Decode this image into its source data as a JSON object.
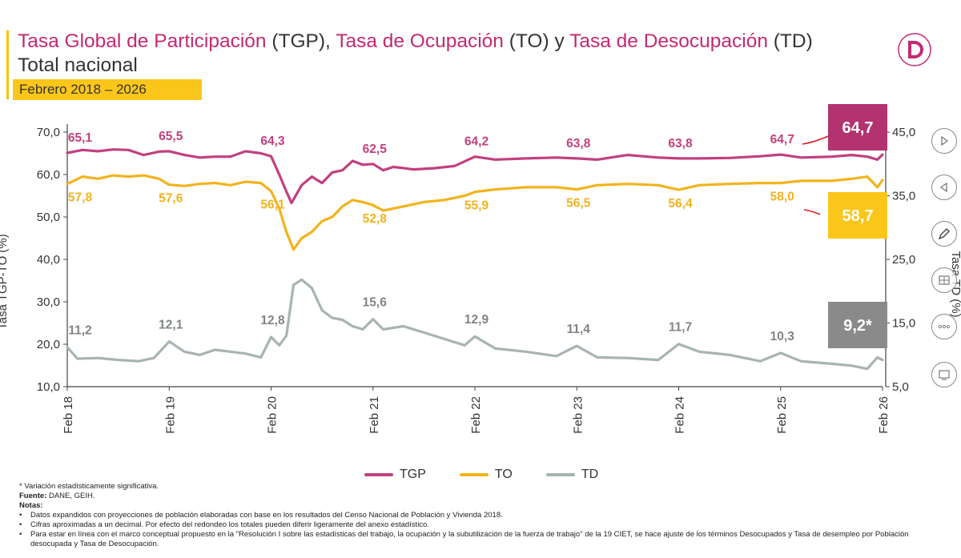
{
  "header": {
    "title_parts": [
      {
        "text": "Tasa Global de Participación",
        "color": "#c22a72"
      },
      {
        "text": " (TGP), ",
        "color": "#333333"
      },
      {
        "text": "Tasa de Ocupación",
        "color": "#c22a72"
      },
      {
        "text": " (TO) y ",
        "color": "#333333"
      },
      {
        "text": "Tasa de Desocupación",
        "color": "#c22a72"
      },
      {
        "text": " (TD)",
        "color": "#333333"
      }
    ],
    "subtitle": "Total nacional",
    "date_range": "Febrero 2018 – 2026"
  },
  "colors": {
    "tgp": "#c2407e",
    "to": "#f2b31c",
    "td": "#a7b4b0",
    "accent": "#c22a72",
    "badge_yellow": "#fbc61a"
  },
  "chart_data": {
    "type": "line",
    "x_labels": [
      "Feb 18",
      "Feb 19",
      "Feb 20",
      "Feb 21",
      "Feb 22",
      "Feb 23",
      "Feb 24",
      "Feb 25",
      "Feb 26"
    ],
    "ylabel_left": "Tasa TGP-TO (%)",
    "ylabel_right": "Tasa TD (%)",
    "yleft_ticks": [
      "10,0",
      "20,0",
      "30,0",
      "40,0",
      "50,0",
      "60,0",
      "70,0"
    ],
    "yright_ticks": [
      "5,0",
      "15,0",
      "25,0",
      "35,0",
      "45,0"
    ],
    "ylim_left": [
      10,
      70
    ],
    "ylim_right": [
      5,
      45
    ],
    "series": [
      {
        "name": "TGP",
        "axis": "left",
        "points": [
          [
            0,
            65.1
          ],
          [
            0.15,
            65.8
          ],
          [
            0.3,
            65.5
          ],
          [
            0.45,
            65.9
          ],
          [
            0.6,
            65.8
          ],
          [
            0.75,
            64.6
          ],
          [
            0.9,
            65.4
          ],
          [
            1.0,
            65.5
          ],
          [
            1.15,
            64.6
          ],
          [
            1.3,
            64.0
          ],
          [
            1.45,
            64.2
          ],
          [
            1.6,
            64.2
          ],
          [
            1.75,
            65.5
          ],
          [
            1.9,
            65.0
          ],
          [
            2.0,
            64.3
          ],
          [
            2.08,
            60.0
          ],
          [
            2.15,
            56.0
          ],
          [
            2.2,
            53.3
          ],
          [
            2.3,
            57.5
          ],
          [
            2.4,
            59.5
          ],
          [
            2.5,
            58.0
          ],
          [
            2.6,
            60.5
          ],
          [
            2.7,
            61.0
          ],
          [
            2.8,
            63.2
          ],
          [
            2.9,
            62.3
          ],
          [
            3.0,
            62.5
          ],
          [
            3.1,
            61.0
          ],
          [
            3.2,
            61.8
          ],
          [
            3.4,
            61.2
          ],
          [
            3.6,
            61.5
          ],
          [
            3.8,
            62.0
          ],
          [
            4.0,
            64.2
          ],
          [
            4.2,
            63.5
          ],
          [
            4.5,
            63.8
          ],
          [
            4.8,
            64.0
          ],
          [
            5.0,
            63.8
          ],
          [
            5.2,
            63.5
          ],
          [
            5.5,
            64.6
          ],
          [
            5.8,
            64.0
          ],
          [
            6.0,
            63.8
          ],
          [
            6.2,
            63.8
          ],
          [
            6.5,
            63.9
          ],
          [
            6.8,
            64.3
          ],
          [
            7.0,
            64.7
          ],
          [
            7.2,
            64.0
          ],
          [
            7.5,
            64.2
          ],
          [
            7.7,
            64.6
          ],
          [
            7.85,
            64.2
          ],
          [
            7.95,
            63.5
          ],
          [
            8.0,
            64.7
          ]
        ],
        "labels": [
          [
            0,
            "65,1"
          ],
          [
            1,
            "65,5"
          ],
          [
            2,
            "64,3"
          ],
          [
            3,
            "62,5"
          ],
          [
            4,
            "64,2"
          ],
          [
            5,
            "63,8"
          ],
          [
            6,
            "63,8"
          ],
          [
            7,
            "64,7"
          ]
        ],
        "last_label": "64,7"
      },
      {
        "name": "TO",
        "axis": "left",
        "points": [
          [
            0,
            57.8
          ],
          [
            0.15,
            59.5
          ],
          [
            0.3,
            59.0
          ],
          [
            0.45,
            59.8
          ],
          [
            0.6,
            59.5
          ],
          [
            0.75,
            59.8
          ],
          [
            0.9,
            59.0
          ],
          [
            1.0,
            57.6
          ],
          [
            1.15,
            57.3
          ],
          [
            1.3,
            57.8
          ],
          [
            1.45,
            58.0
          ],
          [
            1.6,
            57.5
          ],
          [
            1.75,
            58.3
          ],
          [
            1.9,
            58.0
          ],
          [
            2.0,
            56.1
          ],
          [
            2.08,
            52.0
          ],
          [
            2.15,
            46.5
          ],
          [
            2.22,
            42.3
          ],
          [
            2.3,
            45.0
          ],
          [
            2.4,
            46.5
          ],
          [
            2.5,
            49.0
          ],
          [
            2.6,
            50.0
          ],
          [
            2.7,
            52.5
          ],
          [
            2.8,
            54.0
          ],
          [
            2.9,
            53.5
          ],
          [
            3.0,
            52.8
          ],
          [
            3.1,
            51.5
          ],
          [
            3.3,
            52.5
          ],
          [
            3.5,
            53.5
          ],
          [
            3.7,
            54.0
          ],
          [
            3.9,
            55.0
          ],
          [
            4.0,
            55.9
          ],
          [
            4.2,
            56.5
          ],
          [
            4.5,
            57.0
          ],
          [
            4.8,
            57.0
          ],
          [
            5.0,
            56.5
          ],
          [
            5.2,
            57.5
          ],
          [
            5.5,
            57.8
          ],
          [
            5.8,
            57.5
          ],
          [
            6.0,
            56.4
          ],
          [
            6.2,
            57.5
          ],
          [
            6.5,
            57.8
          ],
          [
            6.8,
            58.0
          ],
          [
            7.0,
            58.0
          ],
          [
            7.2,
            58.5
          ],
          [
            7.5,
            58.5
          ],
          [
            7.7,
            59.0
          ],
          [
            7.85,
            59.5
          ],
          [
            7.95,
            57.0
          ],
          [
            8.0,
            58.7
          ]
        ],
        "labels": [
          [
            0,
            "57,8"
          ],
          [
            1,
            "57,6"
          ],
          [
            2,
            "56,1"
          ],
          [
            3,
            "52,8"
          ],
          [
            4,
            "55,9"
          ],
          [
            5,
            "56,5"
          ],
          [
            6,
            "56,4"
          ],
          [
            7,
            "58,0"
          ]
        ],
        "last_label": "58,7"
      },
      {
        "name": "TD",
        "axis": "right",
        "points": [
          [
            0,
            11.2
          ],
          [
            0.1,
            9.4
          ],
          [
            0.3,
            9.5
          ],
          [
            0.5,
            9.2
          ],
          [
            0.7,
            9.0
          ],
          [
            0.85,
            9.5
          ],
          [
            1.0,
            12.1
          ],
          [
            1.15,
            10.5
          ],
          [
            1.3,
            10.0
          ],
          [
            1.45,
            10.8
          ],
          [
            1.6,
            10.5
          ],
          [
            1.75,
            10.2
          ],
          [
            1.9,
            9.6
          ],
          [
            2.0,
            12.8
          ],
          [
            2.08,
            11.5
          ],
          [
            2.15,
            13.0
          ],
          [
            2.22,
            21.0
          ],
          [
            2.3,
            21.8
          ],
          [
            2.4,
            20.5
          ],
          [
            2.5,
            17.0
          ],
          [
            2.6,
            15.8
          ],
          [
            2.7,
            15.5
          ],
          [
            2.8,
            14.5
          ],
          [
            2.9,
            14.0
          ],
          [
            3.0,
            15.6
          ],
          [
            3.1,
            14.0
          ],
          [
            3.3,
            14.5
          ],
          [
            3.5,
            13.5
          ],
          [
            3.7,
            12.5
          ],
          [
            3.9,
            11.5
          ],
          [
            4.0,
            12.9
          ],
          [
            4.2,
            11.0
          ],
          [
            4.5,
            10.5
          ],
          [
            4.8,
            9.8
          ],
          [
            5.0,
            11.4
          ],
          [
            5.2,
            9.6
          ],
          [
            5.5,
            9.5
          ],
          [
            5.8,
            9.2
          ],
          [
            6.0,
            11.7
          ],
          [
            6.2,
            10.5
          ],
          [
            6.5,
            10.0
          ],
          [
            6.8,
            9.0
          ],
          [
            7.0,
            10.3
          ],
          [
            7.2,
            9.0
          ],
          [
            7.5,
            8.6
          ],
          [
            7.7,
            8.3
          ],
          [
            7.85,
            7.8
          ],
          [
            7.95,
            9.6
          ],
          [
            8.0,
            9.2
          ]
        ],
        "labels": [
          [
            0,
            "11,2"
          ],
          [
            1,
            "12,1"
          ],
          [
            2,
            "12,8"
          ],
          [
            3,
            "15,6"
          ],
          [
            4,
            "12,9"
          ],
          [
            5,
            "11,4"
          ],
          [
            6,
            "11,7"
          ],
          [
            7,
            "10,3"
          ]
        ],
        "last_label": "9,2*"
      }
    ]
  },
  "notes": {
    "line1": "* Variación estadísticamente significativa.",
    "fuente_label": "Fuente:",
    "fuente_text": " DANE, GEIH.",
    "notas_label": "Notas:",
    "bullets": [
      "Datos expandidos con proyecciones de población elaboradas con base en los resultados del Censo Nacional de Población y Vivienda 2018.",
      "Cifras aproximadas a un decimal. Por efecto del redondeo los totales pueden diferir ligeramente del anexo estadístico.",
      "Para estar en línea con el marco conceptual propuesto en la \"Resolución I sobre las estadísticas del trabajo, la ocupación y la subutilización de la fuerza de trabajo\" de la 19 CIET, se hace ajuste de los términos Desocupados y Tasa de desempleo por Población desocupada y Tasa de Desocupación."
    ]
  }
}
